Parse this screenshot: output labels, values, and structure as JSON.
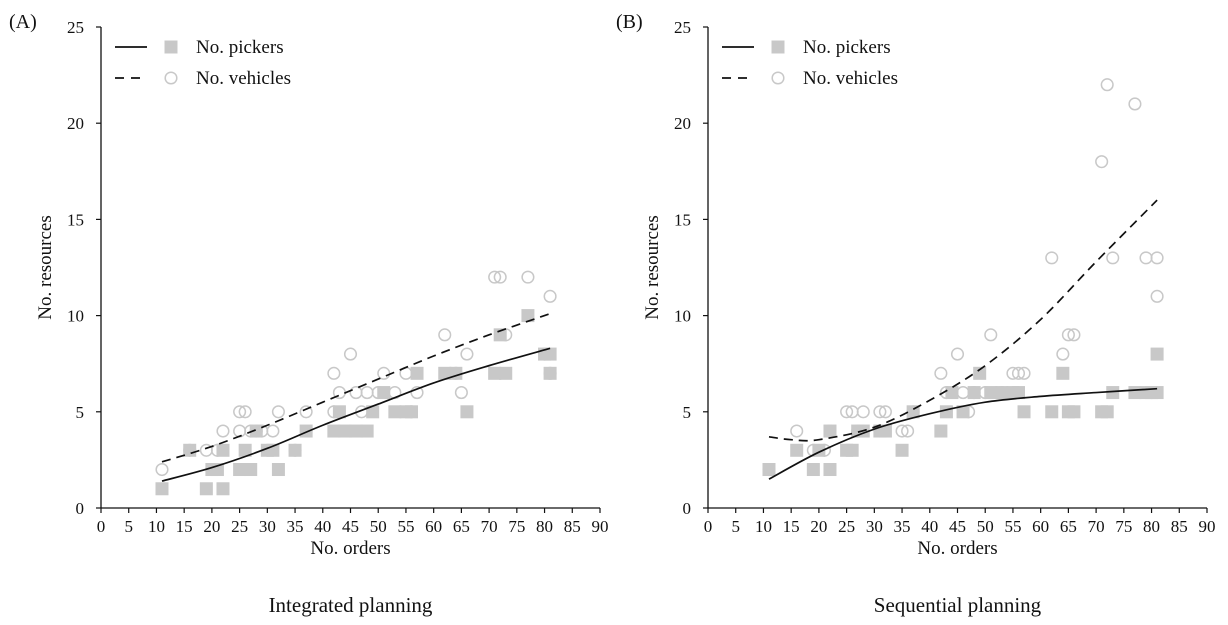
{
  "chart_data": [
    {
      "type": "scatter",
      "panel_label": "(A)",
      "caption": "Integrated planning",
      "xlabel": "No. orders",
      "ylabel": "No. resources",
      "xlim": [
        0,
        90
      ],
      "ylim": [
        0,
        25
      ],
      "xticks": [
        "0",
        "5",
        "10",
        "15",
        "20",
        "25",
        "30",
        "35",
        "40",
        "45",
        "50",
        "55",
        "60",
        "65",
        "70",
        "75",
        "80",
        "85",
        "90"
      ],
      "yticks": [
        "0",
        "5",
        "10",
        "15",
        "20",
        "25"
      ],
      "legend_position": "top-left",
      "grid": false,
      "series": [
        {
          "name": "No. pickers",
          "marker": "square",
          "line_style": "solid",
          "color": "#c8c8c8",
          "points": [
            [
              11,
              1
            ],
            [
              16,
              3
            ],
            [
              19,
              1
            ],
            [
              20,
              2
            ],
            [
              21,
              2
            ],
            [
              22,
              1
            ],
            [
              22,
              3
            ],
            [
              25,
              2
            ],
            [
              26,
              3
            ],
            [
              27,
              2
            ],
            [
              28,
              4
            ],
            [
              30,
              3
            ],
            [
              31,
              3
            ],
            [
              32,
              2
            ],
            [
              35,
              3
            ],
            [
              37,
              4
            ],
            [
              42,
              4
            ],
            [
              43,
              5
            ],
            [
              44,
              4
            ],
            [
              46,
              4
            ],
            [
              48,
              4
            ],
            [
              49,
              5
            ],
            [
              51,
              6
            ],
            [
              53,
              5
            ],
            [
              55,
              5
            ],
            [
              56,
              5
            ],
            [
              57,
              7
            ],
            [
              62,
              7
            ],
            [
              64,
              7
            ],
            [
              66,
              5
            ],
            [
              71,
              7
            ],
            [
              72,
              9
            ],
            [
              73,
              7
            ],
            [
              77,
              10
            ],
            [
              80,
              8
            ],
            [
              81,
              8
            ],
            [
              81,
              7
            ]
          ],
          "trend": [
            [
              11,
              1.4
            ],
            [
              20,
              2.1
            ],
            [
              30,
              3.1
            ],
            [
              40,
              4.3
            ],
            [
              50,
              5.4
            ],
            [
              60,
              6.5
            ],
            [
              70,
              7.4
            ],
            [
              81,
              8.3
            ]
          ]
        },
        {
          "name": "No. vehicles",
          "marker": "circle",
          "line_style": "dashed",
          "color": "#c8c8c8",
          "points": [
            [
              11,
              2
            ],
            [
              16,
              3
            ],
            [
              19,
              3
            ],
            [
              21,
              3
            ],
            [
              22,
              4
            ],
            [
              25,
              5
            ],
            [
              26,
              5
            ],
            [
              25,
              4
            ],
            [
              27,
              4
            ],
            [
              28,
              4
            ],
            [
              29,
              4
            ],
            [
              31,
              4
            ],
            [
              32,
              5
            ],
            [
              35,
              3
            ],
            [
              37,
              5
            ],
            [
              42,
              7
            ],
            [
              42,
              5
            ],
            [
              43,
              6
            ],
            [
              45,
              8
            ],
            [
              46,
              6
            ],
            [
              47,
              5
            ],
            [
              48,
              6
            ],
            [
              50,
              6
            ],
            [
              51,
              7
            ],
            [
              53,
              6
            ],
            [
              55,
              7
            ],
            [
              56,
              5
            ],
            [
              57,
              6
            ],
            [
              62,
              9
            ],
            [
              64,
              7
            ],
            [
              65,
              6
            ],
            [
              66,
              8
            ],
            [
              71,
              12
            ],
            [
              72,
              12
            ],
            [
              73,
              9
            ],
            [
              77,
              12
            ],
            [
              80,
              8
            ],
            [
              81,
              11
            ],
            [
              81,
              7
            ]
          ],
          "trend": [
            [
              11,
              2.4
            ],
            [
              20,
              3.2
            ],
            [
              30,
              4.3
            ],
            [
              40,
              5.5
            ],
            [
              50,
              6.7
            ],
            [
              60,
              7.9
            ],
            [
              70,
              9.0
            ],
            [
              81,
              10.1
            ]
          ]
        }
      ]
    },
    {
      "type": "scatter",
      "panel_label": "(B)",
      "caption": "Sequential planning",
      "xlabel": "No. orders",
      "ylabel": "No. resources",
      "xlim": [
        0,
        90
      ],
      "ylim": [
        0,
        25
      ],
      "xticks": [
        "0",
        "5",
        "10",
        "15",
        "20",
        "25",
        "30",
        "35",
        "40",
        "45",
        "50",
        "55",
        "60",
        "65",
        "70",
        "75",
        "80",
        "85",
        "90"
      ],
      "yticks": [
        "0",
        "5",
        "10",
        "15",
        "20",
        "25"
      ],
      "legend_position": "top-left",
      "grid": false,
      "series": [
        {
          "name": "No. pickers",
          "marker": "square",
          "line_style": "solid",
          "color": "#c8c8c8",
          "points": [
            [
              11,
              2
            ],
            [
              16,
              3
            ],
            [
              19,
              2
            ],
            [
              20,
              3
            ],
            [
              22,
              2
            ],
            [
              22,
              4
            ],
            [
              25,
              3
            ],
            [
              26,
              3
            ],
            [
              27,
              4
            ],
            [
              28,
              4
            ],
            [
              31,
              4
            ],
            [
              32,
              4
            ],
            [
              35,
              3
            ],
            [
              37,
              5
            ],
            [
              42,
              4
            ],
            [
              43,
              5
            ],
            [
              44,
              6
            ],
            [
              46,
              5
            ],
            [
              48,
              6
            ],
            [
              49,
              7
            ],
            [
              51,
              6
            ],
            [
              53,
              6
            ],
            [
              55,
              6
            ],
            [
              56,
              6
            ],
            [
              57,
              5
            ],
            [
              62,
              5
            ],
            [
              64,
              7
            ],
            [
              65,
              5
            ],
            [
              66,
              5
            ],
            [
              71,
              5
            ],
            [
              72,
              5
            ],
            [
              73,
              6
            ],
            [
              77,
              6
            ],
            [
              79,
              6
            ],
            [
              80,
              6
            ],
            [
              81,
              8
            ],
            [
              81,
              6
            ]
          ],
          "trend": [
            [
              11,
              1.5
            ],
            [
              20,
              2.9
            ],
            [
              30,
              4.1
            ],
            [
              40,
              4.9
            ],
            [
              50,
              5.5
            ],
            [
              60,
              5.8
            ],
            [
              70,
              6.0
            ],
            [
              81,
              6.2
            ]
          ]
        },
        {
          "name": "No. vehicles",
          "marker": "circle",
          "line_style": "dashed",
          "color": "#c8c8c8",
          "points": [
            [
              11,
              2
            ],
            [
              16,
              4
            ],
            [
              19,
              3
            ],
            [
              21,
              3
            ],
            [
              22,
              4
            ],
            [
              25,
              5
            ],
            [
              26,
              5
            ],
            [
              27,
              4
            ],
            [
              28,
              5
            ],
            [
              31,
              5
            ],
            [
              32,
              5
            ],
            [
              35,
              4
            ],
            [
              36,
              4
            ],
            [
              37,
              5
            ],
            [
              42,
              7
            ],
            [
              43,
              6
            ],
            [
              45,
              8
            ],
            [
              46,
              6
            ],
            [
              47,
              5
            ],
            [
              48,
              6
            ],
            [
              50,
              6
            ],
            [
              51,
              9
            ],
            [
              53,
              6
            ],
            [
              55,
              7
            ],
            [
              56,
              7
            ],
            [
              57,
              7
            ],
            [
              62,
              13
            ],
            [
              64,
              8
            ],
            [
              65,
              9
            ],
            [
              66,
              9
            ],
            [
              71,
              18
            ],
            [
              72,
              22
            ],
            [
              73,
              13
            ],
            [
              77,
              21
            ],
            [
              79,
              13
            ],
            [
              81,
              13
            ],
            [
              81,
              11
            ]
          ],
          "trend": [
            [
              11,
              3.7
            ],
            [
              15,
              3.55
            ],
            [
              20,
              3.55
            ],
            [
              30,
              4.2
            ],
            [
              40,
              5.6
            ],
            [
              50,
              7.4
            ],
            [
              60,
              9.8
            ],
            [
              70,
              12.8
            ],
            [
              81,
              16.0
            ]
          ]
        }
      ]
    }
  ]
}
